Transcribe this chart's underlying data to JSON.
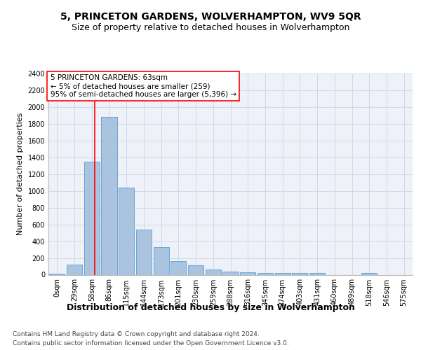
{
  "title": "5, PRINCETON GARDENS, WOLVERHAMPTON, WV9 5QR",
  "subtitle": "Size of property relative to detached houses in Wolverhampton",
  "xlabel": "Distribution of detached houses by size in Wolverhampton",
  "ylabel": "Number of detached properties",
  "bar_values": [
    15,
    125,
    1350,
    1880,
    1040,
    540,
    330,
    160,
    110,
    65,
    40,
    30,
    25,
    20,
    20,
    25,
    0,
    0,
    20,
    0,
    0
  ],
  "bar_labels": [
    "0sqm",
    "29sqm",
    "58sqm",
    "86sqm",
    "115sqm",
    "144sqm",
    "173sqm",
    "201sqm",
    "230sqm",
    "259sqm",
    "288sqm",
    "316sqm",
    "345sqm",
    "374sqm",
    "403sqm",
    "431sqm",
    "460sqm",
    "489sqm",
    "518sqm",
    "546sqm",
    "575sqm"
  ],
  "bar_color": "#aac4e0",
  "bar_edge_color": "#5b9bd5",
  "grid_color": "#d0d8e8",
  "background_color": "#eef2f8",
  "annotation_line1": "5 PRINCETON GARDENS: 63sqm",
  "annotation_line2": "← 5% of detached houses are smaller (259)",
  "annotation_line3": "95% of semi-detached houses are larger (5,396) →",
  "annotation_box_color": "white",
  "annotation_box_edge_color": "red",
  "vline_x_index": 2.17,
  "vline_color": "red",
  "ylim": [
    0,
    2400
  ],
  "yticks": [
    0,
    200,
    400,
    600,
    800,
    1000,
    1200,
    1400,
    1600,
    1800,
    2000,
    2200,
    2400
  ],
  "footer_line1": "Contains HM Land Registry data © Crown copyright and database right 2024.",
  "footer_line2": "Contains public sector information licensed under the Open Government Licence v3.0.",
  "title_fontsize": 10,
  "subtitle_fontsize": 9,
  "xlabel_fontsize": 9,
  "ylabel_fontsize": 8,
  "tick_fontsize": 7,
  "annotation_fontsize": 7.5,
  "footer_fontsize": 6.5
}
